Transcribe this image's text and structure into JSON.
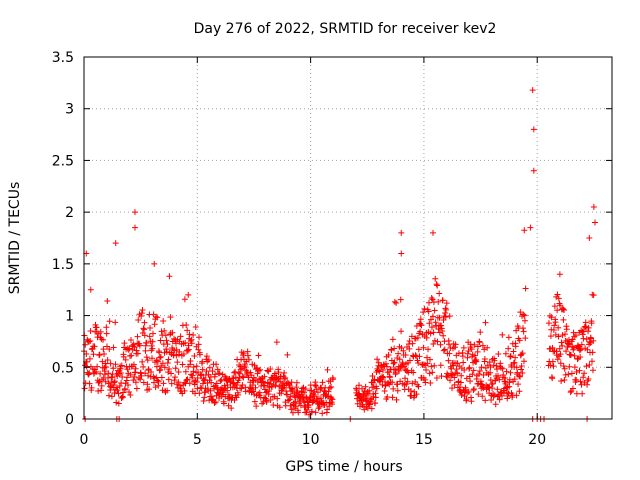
{
  "chart_data": {
    "type": "scatter",
    "title": "Day 276 of 2022, SRMTID for receiver kev2",
    "xlabel": "GPS time / hours",
    "ylabel": "SRMTID / TECUs",
    "xlim": [
      0,
      23.3
    ],
    "ylim": [
      0,
      3.5
    ],
    "xticks": [
      0,
      5,
      10,
      15,
      20
    ],
    "yticks": [
      0,
      0.5,
      1,
      1.5,
      2,
      2.5,
      3,
      3.5
    ],
    "xtick_labels": [
      "0",
      "5",
      "10",
      "15",
      "20"
    ],
    "ytick_labels": [
      "0",
      "0.5",
      "1",
      "1.5",
      "2",
      "2.5",
      "3",
      "3.5"
    ],
    "grid": true,
    "legend": null,
    "marker": "+",
    "series_color": "#ff0000",
    "density_profile": [
      [
        0.0,
        0.45
      ],
      [
        0.5,
        0.6
      ],
      [
        1.0,
        0.55
      ],
      [
        1.5,
        0.35
      ],
      [
        2.0,
        0.5
      ],
      [
        2.5,
        0.65
      ],
      [
        3.0,
        0.7
      ],
      [
        3.5,
        0.6
      ],
      [
        4.0,
        0.5
      ],
      [
        4.5,
        0.6
      ],
      [
        5.0,
        0.55
      ],
      [
        5.5,
        0.4
      ],
      [
        6.0,
        0.3
      ],
      [
        6.5,
        0.3
      ],
      [
        7.0,
        0.4
      ],
      [
        7.5,
        0.35
      ],
      [
        8.0,
        0.3
      ],
      [
        8.5,
        0.3
      ],
      [
        9.0,
        0.25
      ],
      [
        9.5,
        0.2
      ],
      [
        10.0,
        0.2
      ],
      [
        10.5,
        0.2
      ],
      [
        11.0,
        0.25
      ],
      [
        11.5,
        null
      ],
      [
        12.0,
        0.2
      ],
      [
        12.5,
        0.2
      ],
      [
        13.0,
        0.35
      ],
      [
        13.5,
        0.5
      ],
      [
        14.0,
        0.45
      ],
      [
        14.5,
        0.5
      ],
      [
        15.0,
        0.65
      ],
      [
        15.5,
        0.9
      ],
      [
        16.0,
        0.7
      ],
      [
        16.5,
        0.45
      ],
      [
        17.0,
        0.45
      ],
      [
        17.5,
        0.5
      ],
      [
        18.0,
        0.4
      ],
      [
        18.5,
        0.35
      ],
      [
        19.0,
        0.55
      ],
      [
        19.5,
        0.8
      ],
      [
        20.0,
        null
      ],
      [
        20.5,
        0.7
      ],
      [
        21.0,
        0.8
      ],
      [
        21.5,
        0.5
      ],
      [
        22.0,
        0.6
      ],
      [
        22.5,
        0.8
      ]
    ],
    "notable_points": [
      {
        "x": 0.1,
        "y": 1.6
      },
      {
        "x": 0.3,
        "y": 1.25
      },
      {
        "x": 1.4,
        "y": 1.7
      },
      {
        "x": 2.25,
        "y": 2.0
      },
      {
        "x": 2.25,
        "y": 1.85
      },
      {
        "x": 3.1,
        "y": 1.5
      },
      {
        "x": 4.6,
        "y": 1.2
      },
      {
        "x": 14.0,
        "y": 1.8
      },
      {
        "x": 14.0,
        "y": 1.6
      },
      {
        "x": 15.4,
        "y": 1.8
      },
      {
        "x": 19.8,
        "y": 3.18
      },
      {
        "x": 19.85,
        "y": 2.8
      },
      {
        "x": 19.85,
        "y": 2.4
      },
      {
        "x": 19.7,
        "y": 1.85
      },
      {
        "x": 22.5,
        "y": 2.05
      },
      {
        "x": 22.55,
        "y": 1.9
      },
      {
        "x": 22.3,
        "y": 1.75
      },
      {
        "x": 21.0,
        "y": 1.4
      }
    ],
    "gaps": [
      [
        11.5,
        11.9
      ],
      [
        19.7,
        20.4
      ]
    ],
    "zero_points_x": [
      0.05,
      1.45,
      1.55,
      11.75,
      19.8,
      20.0,
      20.15,
      20.3,
      22.2
    ]
  }
}
